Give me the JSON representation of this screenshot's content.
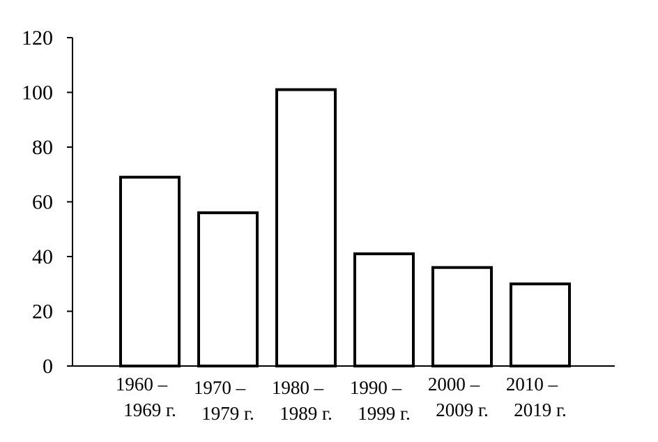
{
  "chart_data": {
    "type": "bar",
    "title": "",
    "xlabel": "",
    "ylabel": "",
    "ylim": [
      0,
      120
    ],
    "y_ticks": [
      0,
      20,
      40,
      60,
      80,
      100,
      120
    ],
    "y_tick_labels": [
      "0",
      "20",
      "40",
      "60",
      "80",
      "100",
      "120"
    ],
    "categories": [
      [
        "1960 –",
        "1969 г."
      ],
      [
        "1970 –",
        "1979 г."
      ],
      [
        "1980 –",
        "1989 г."
      ],
      [
        "1990 –",
        "1999 г."
      ],
      [
        "2000 –",
        "2009 г."
      ],
      [
        "2010 –",
        "2019 г."
      ]
    ],
    "values": [
      69,
      56,
      101,
      41,
      36,
      30
    ],
    "grid": false,
    "legend": "none",
    "bar_fill": "#ffffff",
    "bar_stroke": "#000000",
    "axis_color": "#000000"
  }
}
